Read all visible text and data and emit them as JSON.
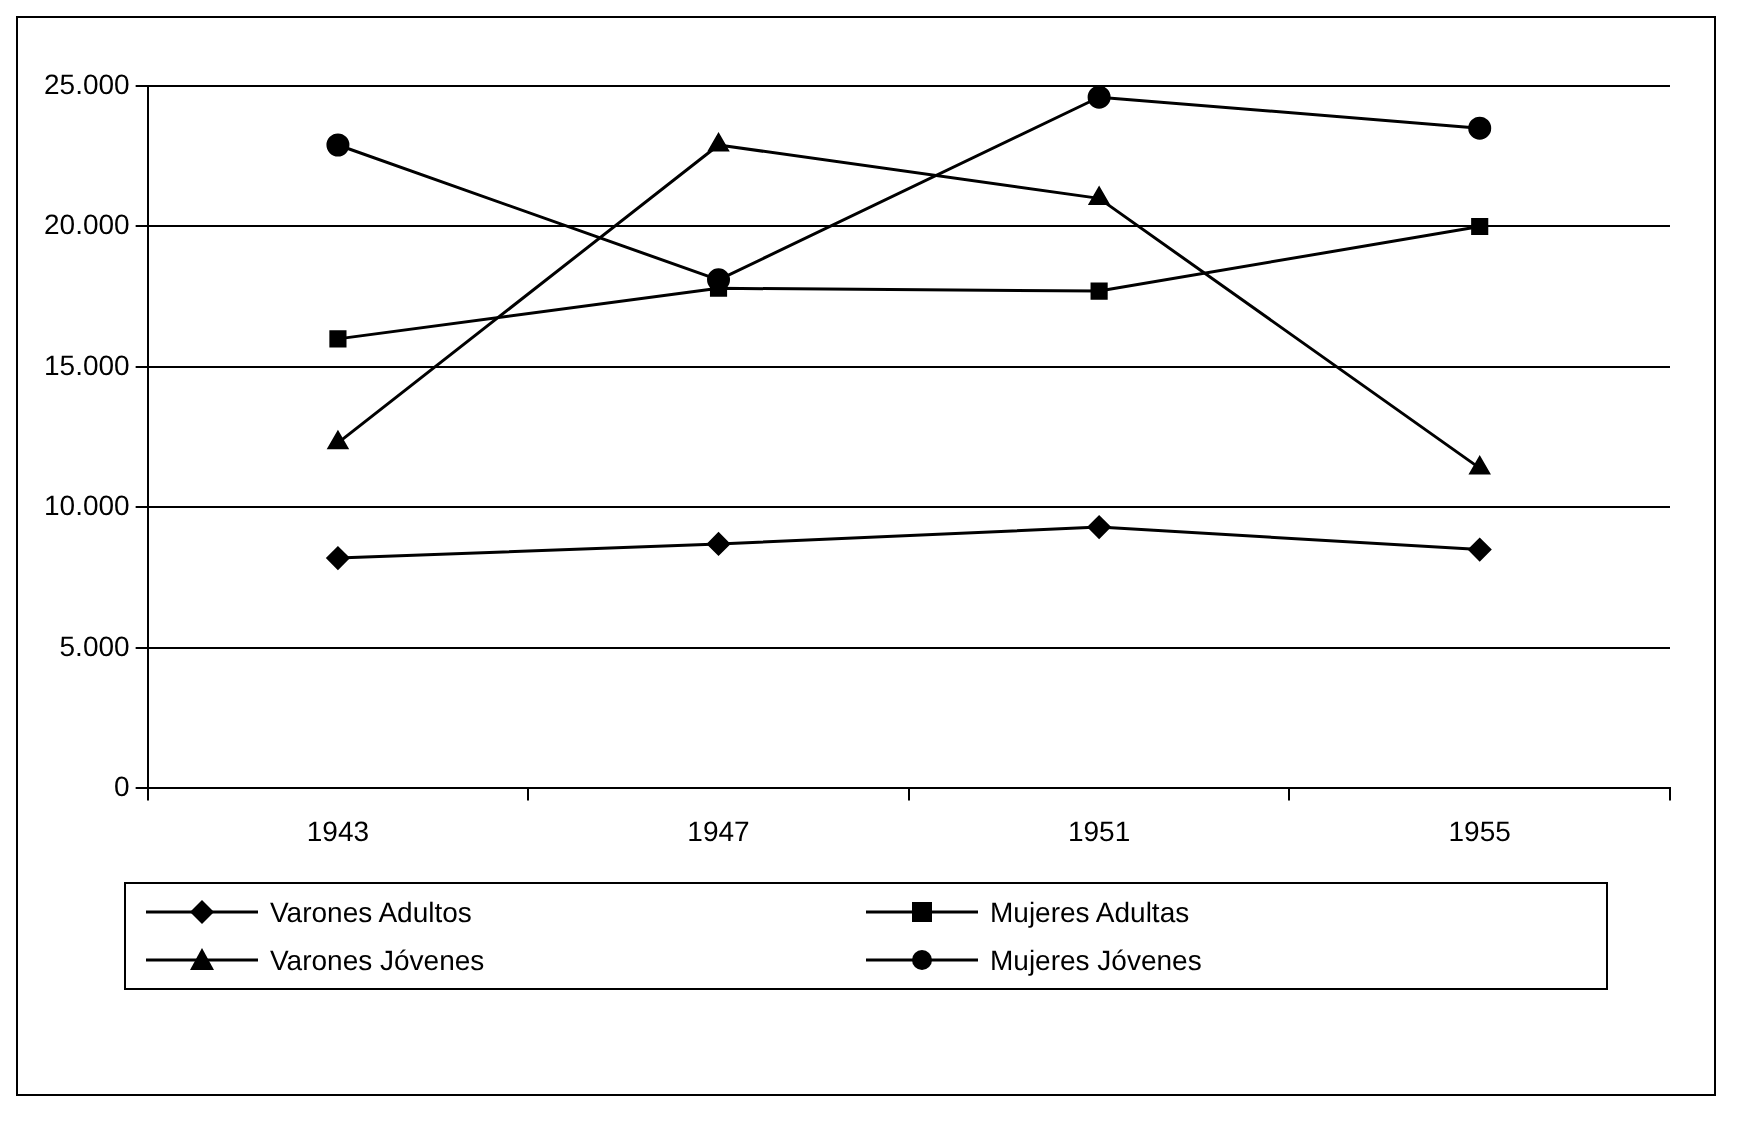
{
  "chart_data": {
    "type": "line",
    "categories": [
      "1943",
      "1947",
      "1951",
      "1955"
    ],
    "series": [
      {
        "name": "Varones Adultos",
        "color": "#000000",
        "marker": "diamond",
        "values": [
          8200,
          8700,
          9300,
          8500
        ]
      },
      {
        "name": "Mujeres Adultas",
        "color": "#000000",
        "marker": "square",
        "values": [
          16000,
          17800,
          17700,
          20000
        ]
      },
      {
        "name": "Varones Jóvenes",
        "color": "#000000",
        "marker": "triangle",
        "values": [
          12300,
          22900,
          21000,
          11400
        ]
      },
      {
        "name": "Mujeres Jóvenes",
        "color": "#000000",
        "marker": "circle",
        "values": [
          22900,
          18100,
          24600,
          23500
        ]
      }
    ],
    "ylim": [
      0,
      25000
    ],
    "yticks": [
      {
        "value": 0,
        "label": "0"
      },
      {
        "value": 5000,
        "label": "5.000"
      },
      {
        "value": 10000,
        "label": "10.000"
      },
      {
        "value": 15000,
        "label": "15.000"
      },
      {
        "value": 20000,
        "label": "20.000"
      },
      {
        "value": 25000,
        "label": "25.000"
      }
    ],
    "grid": "y",
    "legend": "bottom",
    "line_style": "solid"
  }
}
